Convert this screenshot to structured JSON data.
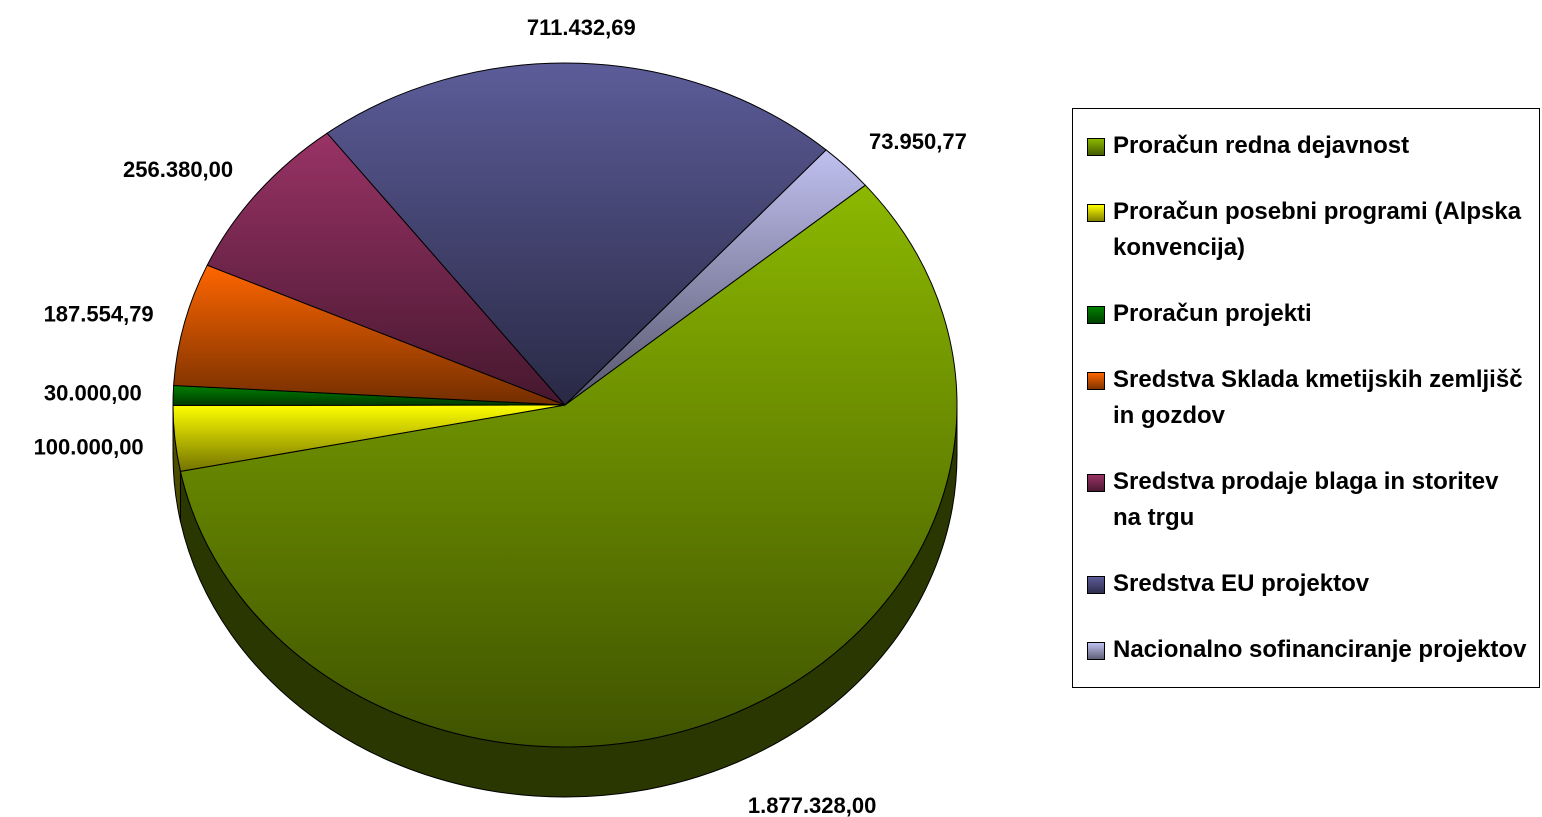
{
  "chart_data": {
    "type": "pie",
    "categories": [
      "Proračun redna dejavnost",
      "Proračun posebni programi (Alpska konvencija)",
      "Proračun projekti",
      "Sredstva Sklada kmetijskih zemljišč in gozdov",
      "Sredstva prodaje blaga in storitev na trgu",
      "Sredstva EU projektov",
      "Nacionalno sofinanciranje projektov"
    ],
    "values": [
      1877328.0,
      100000.0,
      30000.0,
      187554.79,
      256380.0,
      711432.69,
      73950.77
    ],
    "value_labels": [
      "1.877.328,00",
      "100.000,00",
      "30.000,00",
      "187.554,79",
      "256.380,00",
      "711.432,69",
      "73.950,77"
    ],
    "colors": [
      "#8cb800",
      "#ffff00",
      "#008000",
      "#ff6600",
      "#993366",
      "#5c5c99",
      "#c0c0f0"
    ],
    "legend": "right"
  }
}
